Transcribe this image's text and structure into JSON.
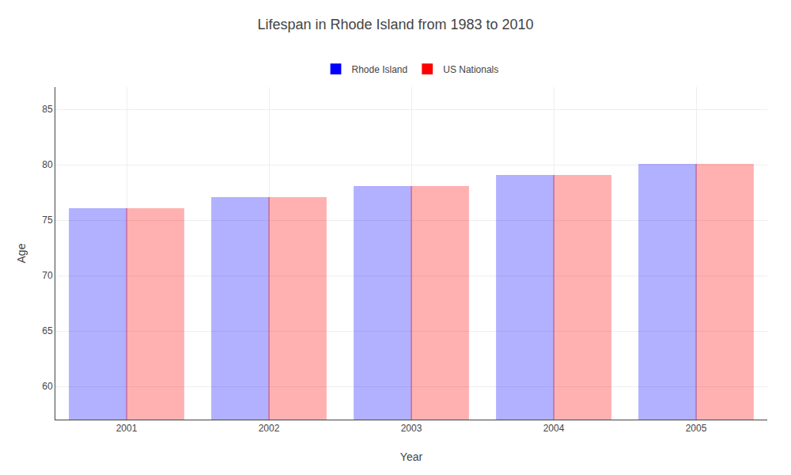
{
  "chart_data": {
    "type": "bar",
    "title": "Lifespan in Rhode Island from 1983 to 2010",
    "x_label": "Year",
    "y_label": "Age",
    "categories": [
      "2001",
      "2002",
      "2003",
      "2004",
      "2005"
    ],
    "series": [
      {
        "name": "Rhode Island",
        "color": "#0000ff",
        "values": [
          76.0,
          77.0,
          78.0,
          79.0,
          80.0
        ]
      },
      {
        "name": "US Nationals",
        "color": "#ff0000",
        "values": [
          76.0,
          77.0,
          78.0,
          79.0,
          80.0
        ]
      }
    ],
    "ylim": [
      57,
      87
    ],
    "yticks": [
      60,
      65,
      70,
      75,
      80,
      85
    ],
    "grid": true,
    "legend": "upper center"
  }
}
